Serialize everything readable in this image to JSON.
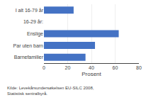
{
  "chart_data": {
    "type": "bar",
    "orientation": "horizontal",
    "categories": [
      "I alt 16-79 år",
      "16-29 år:",
      "Enslige",
      "Par uten barn",
      "Barnefamilier"
    ],
    "values": [
      25,
      null,
      63,
      43,
      35
    ],
    "color": "#4472C4",
    "xlabel": "Prosent",
    "xlim": [
      0,
      80
    ],
    "xticks": [
      0,
      20,
      40,
      60,
      80
    ],
    "grid": true,
    "annotations": [
      "Kilde: Levekårsundersøkelsen EU-SILC 2008,",
      "Statistisk sentralbyrå."
    ]
  }
}
